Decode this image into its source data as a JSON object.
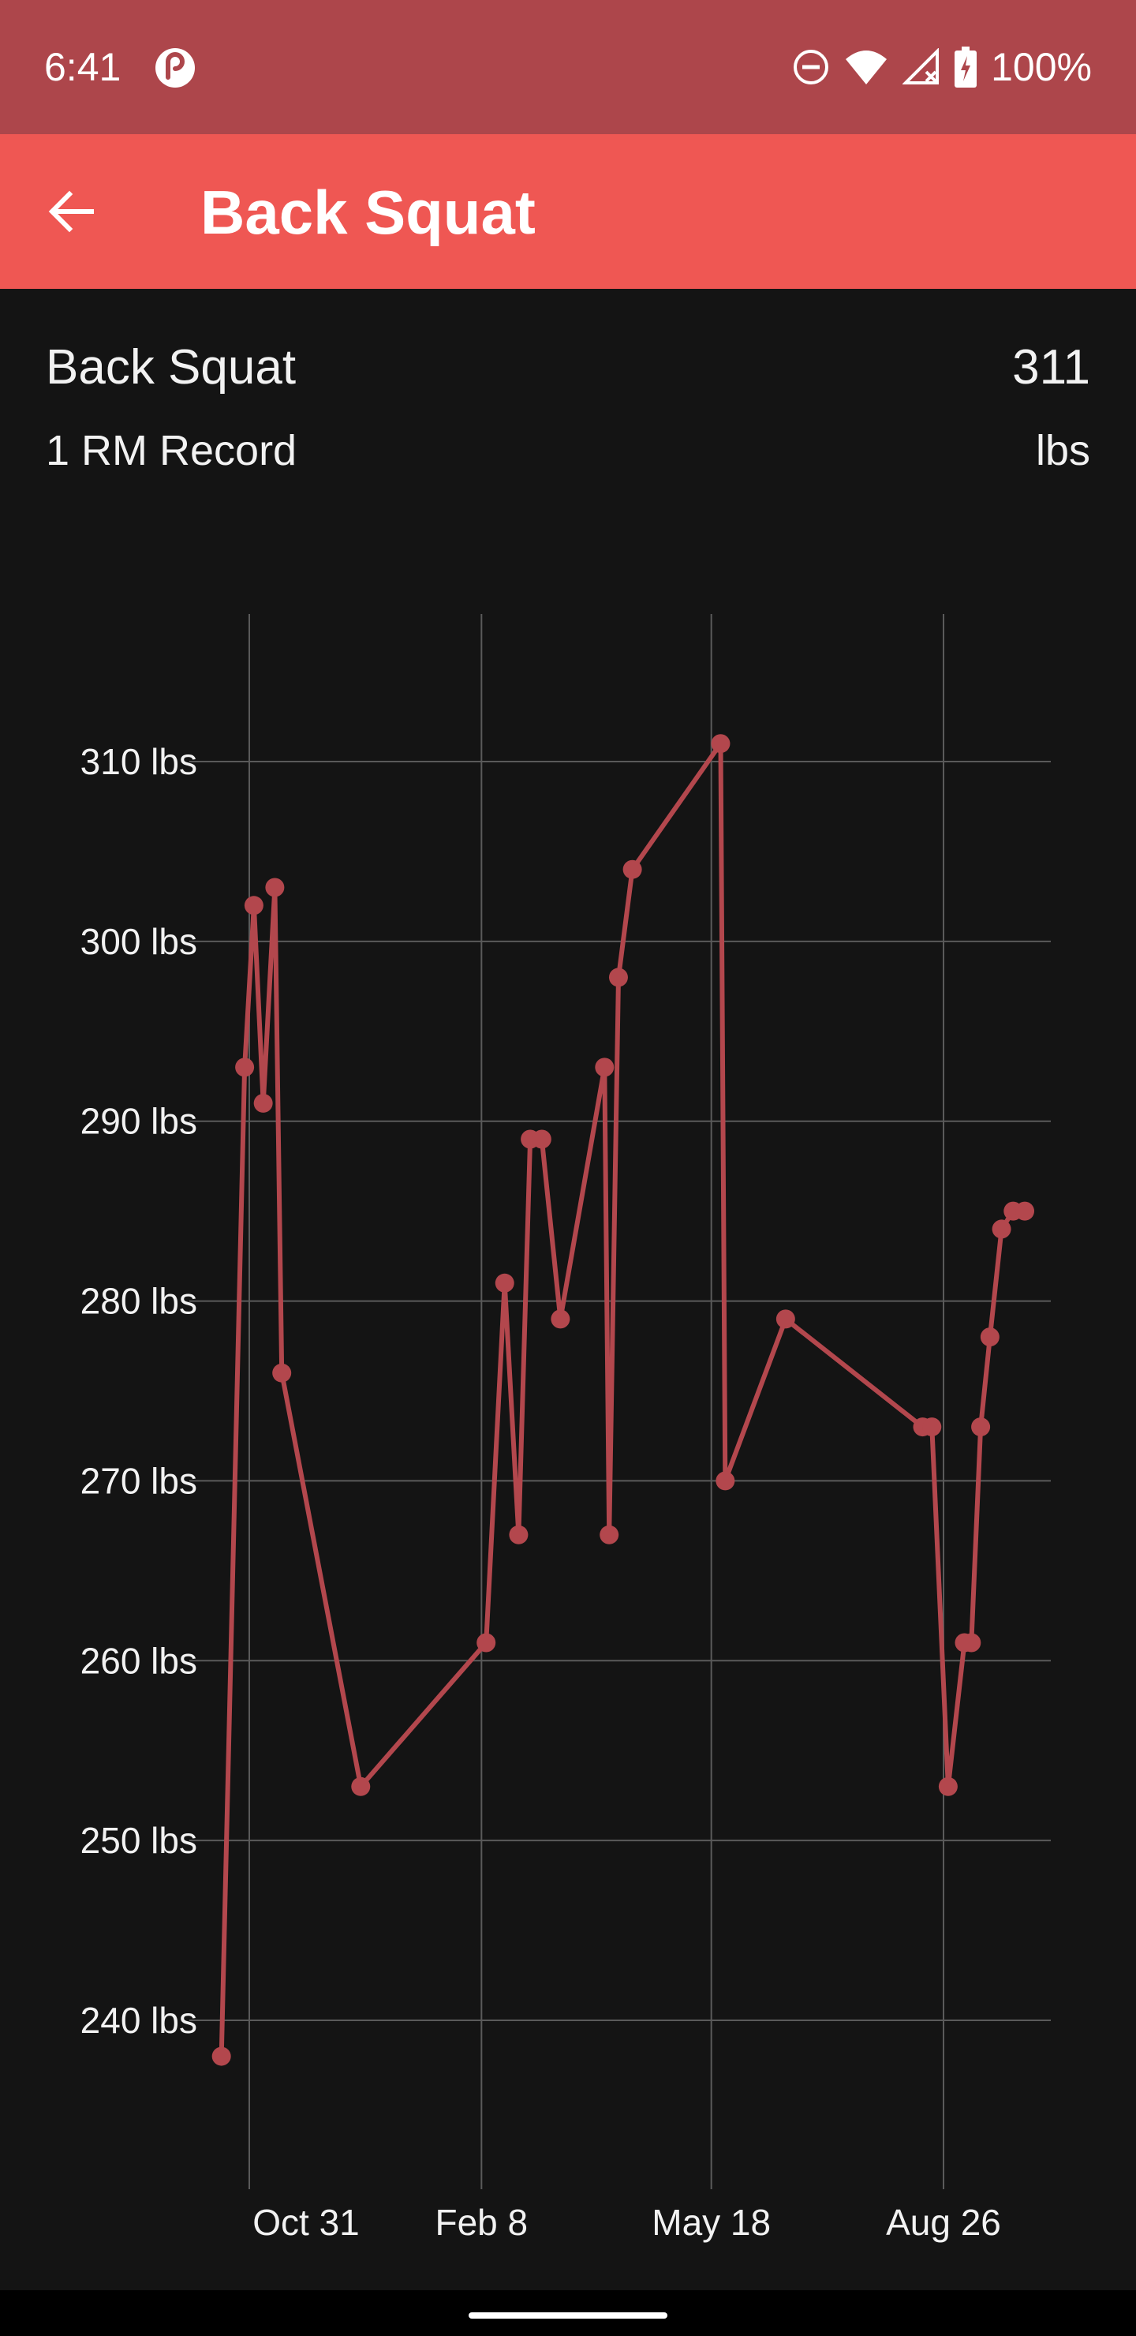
{
  "status_bar": {
    "time": "6:41",
    "battery": "100%",
    "icons": [
      "pocket-casts-icon",
      "do-not-disturb-icon",
      "wifi-icon",
      "cell-signal-icon",
      "battery-charging-icon"
    ]
  },
  "app_bar": {
    "title": "Back Squat",
    "back_icon": "arrow-back-icon"
  },
  "summary": {
    "exercise": "Back Squat",
    "value": "311",
    "record_label": "1 RM Record",
    "unit": "lbs"
  },
  "colors": {
    "status_bar": "#ad464b",
    "app_bar": "#ef5753",
    "background": "#141414",
    "series": "#b3474d",
    "grid": "#5a5a5a"
  },
  "chart_data": {
    "type": "line",
    "title": "",
    "xlabel": "",
    "ylabel": "",
    "x_axis": "date",
    "ylim": [
      232,
      313
    ],
    "y_ticks": [
      240,
      250,
      260,
      270,
      280,
      290,
      300,
      310
    ],
    "y_tick_labels": [
      "240 lbs",
      "250 lbs",
      "260 lbs",
      "270 lbs",
      "280 lbs",
      "290 lbs",
      "300 lbs",
      "310 lbs"
    ],
    "x_ticks": [
      "Oct 31",
      "Feb 8",
      "May 18",
      "Aug 26"
    ],
    "grid": true,
    "series": [
      {
        "name": "",
        "points": [
          {
            "x": "2021-10-19",
            "y": 238
          },
          {
            "x": "2021-10-29",
            "y": 293
          },
          {
            "x": "2021-11-02",
            "y": 302
          },
          {
            "x": "2021-11-06",
            "y": 291
          },
          {
            "x": "2021-11-11",
            "y": 303
          },
          {
            "x": "2021-11-14",
            "y": 276
          },
          {
            "x": "2021-12-18",
            "y": 253
          },
          {
            "x": "2022-02-10",
            "y": 261
          },
          {
            "x": "2022-02-18",
            "y": 281
          },
          {
            "x": "2022-02-24",
            "y": 267
          },
          {
            "x": "2022-02-29",
            "y": 289
          },
          {
            "x": "2022-03-06",
            "y": 289
          },
          {
            "x": "2022-03-14",
            "y": 279
          },
          {
            "x": "2022-04-02",
            "y": 293
          },
          {
            "x": "2022-04-04",
            "y": 267
          },
          {
            "x": "2022-04-08",
            "y": 298
          },
          {
            "x": "2022-04-14",
            "y": 304
          },
          {
            "x": "2022-05-22",
            "y": 311
          },
          {
            "x": "2022-05-24",
            "y": 270
          },
          {
            "x": "2022-06-19",
            "y": 279
          },
          {
            "x": "2022-08-17",
            "y": 273
          },
          {
            "x": "2022-08-21",
            "y": 273
          },
          {
            "x": "2022-08-28",
            "y": 253
          },
          {
            "x": "2022-09-04",
            "y": 261
          },
          {
            "x": "2022-09-07",
            "y": 261
          },
          {
            "x": "2022-09-11",
            "y": 273
          },
          {
            "x": "2022-09-15",
            "y": 278
          },
          {
            "x": "2022-09-20",
            "y": 284
          },
          {
            "x": "2022-09-25",
            "y": 285
          },
          {
            "x": "2022-09-30",
            "y": 285
          }
        ]
      }
    ]
  }
}
